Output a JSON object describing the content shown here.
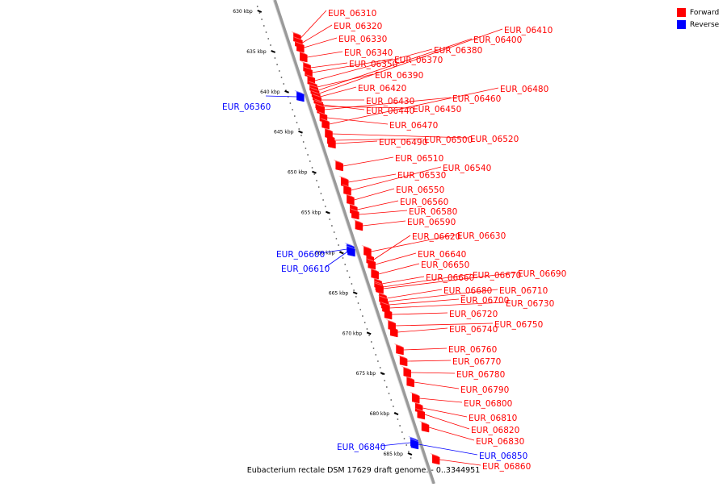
{
  "colors": {
    "forward": "#ff0000",
    "reverse": "#0000ff",
    "axis": "#888888"
  },
  "legend": [
    {
      "label": "Forward",
      "color": "#ff0000"
    },
    {
      "label": "Reverse",
      "color": "#0000ff"
    }
  ],
  "caption": "Eubacterium rectale DSM 17629 draft genome. - 0..3344951",
  "ruler": {
    "unit": "kbp",
    "ticks": [
      {
        "value": 630,
        "label": "630 kbp"
      },
      {
        "value": 635,
        "label": "635 kbp"
      },
      {
        "value": 640,
        "label": "640 kbp"
      },
      {
        "value": 645,
        "label": "645 kbp"
      },
      {
        "value": 650,
        "label": "650 kbp"
      },
      {
        "value": 655,
        "label": "655 kbp"
      },
      {
        "value": 660,
        "label": "660 kbp"
      },
      {
        "value": 665,
        "label": "665 kbp"
      },
      {
        "value": 670,
        "label": "670 kbp"
      },
      {
        "value": 675,
        "label": "675 kbp"
      },
      {
        "value": 680,
        "label": "680 kbp"
      },
      {
        "value": 685,
        "label": "685 kbp"
      }
    ]
  },
  "genes": [
    {
      "id": "EUR_06310",
      "strand": "forward"
    },
    {
      "id": "EUR_06320",
      "strand": "forward"
    },
    {
      "id": "EUR_06330",
      "strand": "forward"
    },
    {
      "id": "EUR_06340",
      "strand": "forward"
    },
    {
      "id": "EUR_06350",
      "strand": "forward"
    },
    {
      "id": "EUR_06360",
      "strand": "reverse"
    },
    {
      "id": "EUR_06370",
      "strand": "forward"
    },
    {
      "id": "EUR_06380",
      "strand": "forward"
    },
    {
      "id": "EUR_06390",
      "strand": "forward"
    },
    {
      "id": "EUR_06400",
      "strand": "forward"
    },
    {
      "id": "EUR_06410",
      "strand": "forward"
    },
    {
      "id": "EUR_06420",
      "strand": "forward"
    },
    {
      "id": "EUR_06430",
      "strand": "forward"
    },
    {
      "id": "EUR_06440",
      "strand": "forward"
    },
    {
      "id": "EUR_06450",
      "strand": "forward"
    },
    {
      "id": "EUR_06460",
      "strand": "forward"
    },
    {
      "id": "EUR_06470",
      "strand": "forward"
    },
    {
      "id": "EUR_06480",
      "strand": "forward"
    },
    {
      "id": "EUR_06490",
      "strand": "forward"
    },
    {
      "id": "EUR_06500",
      "strand": "forward"
    },
    {
      "id": "EUR_06510",
      "strand": "forward"
    },
    {
      "id": "EUR_06520",
      "strand": "forward"
    },
    {
      "id": "EUR_06530",
      "strand": "forward"
    },
    {
      "id": "EUR_06540",
      "strand": "forward"
    },
    {
      "id": "EUR_06550",
      "strand": "forward"
    },
    {
      "id": "EUR_06560",
      "strand": "forward"
    },
    {
      "id": "EUR_06580",
      "strand": "forward"
    },
    {
      "id": "EUR_06590",
      "strand": "forward"
    },
    {
      "id": "EUR_06600",
      "strand": "reverse"
    },
    {
      "id": "EUR_06610",
      "strand": "reverse"
    },
    {
      "id": "EUR_06620",
      "strand": "forward"
    },
    {
      "id": "EUR_06630",
      "strand": "forward"
    },
    {
      "id": "EUR_06640",
      "strand": "forward"
    },
    {
      "id": "EUR_06650",
      "strand": "forward"
    },
    {
      "id": "EUR_06660",
      "strand": "forward"
    },
    {
      "id": "EUR_06670",
      "strand": "forward"
    },
    {
      "id": "EUR_06680",
      "strand": "forward"
    },
    {
      "id": "EUR_06690",
      "strand": "forward"
    },
    {
      "id": "EUR_06700",
      "strand": "forward"
    },
    {
      "id": "EUR_06710",
      "strand": "forward"
    },
    {
      "id": "EUR_06720",
      "strand": "forward"
    },
    {
      "id": "EUR_06730",
      "strand": "forward"
    },
    {
      "id": "EUR_06740",
      "strand": "forward"
    },
    {
      "id": "EUR_06750",
      "strand": "forward"
    },
    {
      "id": "EUR_06760",
      "strand": "forward"
    },
    {
      "id": "EUR_06770",
      "strand": "forward"
    },
    {
      "id": "EUR_06780",
      "strand": "forward"
    },
    {
      "id": "EUR_06790",
      "strand": "forward"
    },
    {
      "id": "EUR_06800",
      "strand": "forward"
    },
    {
      "id": "EUR_06810",
      "strand": "forward"
    },
    {
      "id": "EUR_06820",
      "strand": "forward"
    },
    {
      "id": "EUR_06830",
      "strand": "forward"
    },
    {
      "id": "EUR_06840",
      "strand": "reverse"
    },
    {
      "id": "EUR_06850",
      "strand": "reverse"
    },
    {
      "id": "EUR_06860",
      "strand": "forward"
    }
  ]
}
